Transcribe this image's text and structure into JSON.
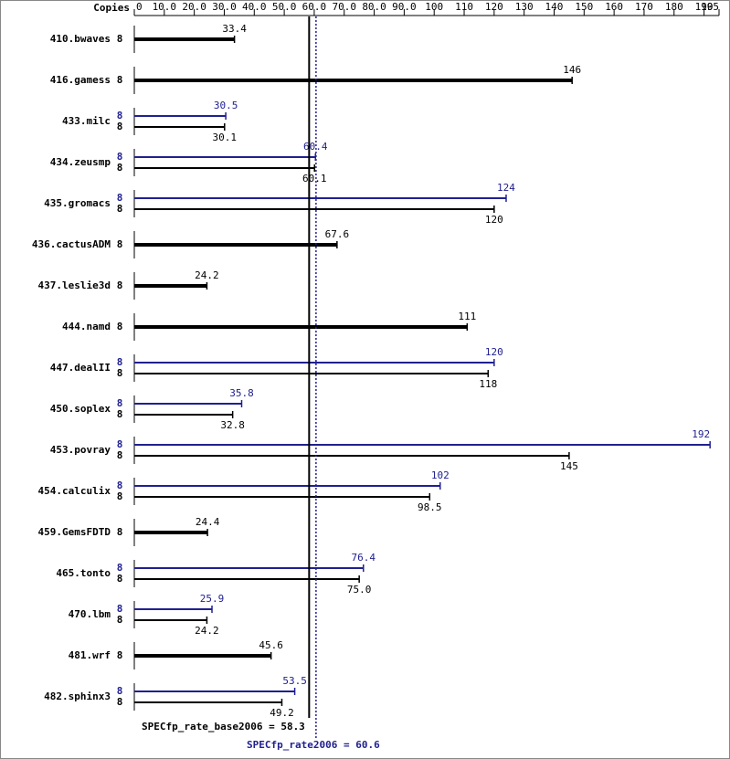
{
  "chart_data": {
    "type": "bar",
    "orientation": "horizontal",
    "copies_label": "Copies",
    "categories": [
      "410.bwaves",
      "416.gamess",
      "433.milc",
      "434.zeusmp",
      "435.gromacs",
      "436.cactusADM",
      "437.leslie3d",
      "444.namd",
      "447.dealII",
      "450.soplex",
      "453.povray",
      "454.calculix",
      "459.GemsFDTD",
      "465.tonto",
      "470.lbm",
      "481.wrf",
      "482.sphinx3"
    ],
    "series": [
      {
        "color": "#000000",
        "copies": [
          8,
          8,
          8,
          8,
          8,
          8,
          8,
          8,
          8,
          8,
          8,
          8,
          8,
          8,
          8,
          8,
          8
        ],
        "values": [
          33.4,
          146,
          30.1,
          60.1,
          120,
          67.6,
          24.2,
          111,
          118,
          32.8,
          145,
          98.5,
          24.4,
          75.0,
          24.2,
          45.6,
          49.2
        ],
        "value_labels": [
          "33.4",
          "146",
          "30.1",
          "60.1",
          "120",
          "67.6",
          "24.2",
          "111",
          "118",
          "32.8",
          "145",
          "98.5",
          "24.4",
          "75.0",
          "24.2",
          "45.6",
          "49.2"
        ]
      },
      {
        "color": "#202090",
        "copies": [
          null,
          null,
          8,
          8,
          8,
          null,
          null,
          null,
          8,
          8,
          8,
          8,
          null,
          8,
          8,
          null,
          8
        ],
        "values": [
          null,
          null,
          30.5,
          60.4,
          124,
          null,
          null,
          null,
          120,
          35.8,
          192,
          102,
          null,
          76.4,
          25.9,
          null,
          53.5
        ],
        "value_labels": [
          null,
          null,
          "30.5",
          "60.4",
          "124",
          null,
          null,
          null,
          "120",
          "35.8",
          "192",
          "102",
          null,
          "76.4",
          "25.9",
          null,
          "53.5"
        ]
      }
    ],
    "xlim": [
      0,
      195
    ],
    "xticks": [
      0,
      {
        "value": 10,
        "label": "10.0"
      },
      {
        "value": 20,
        "label": "20.0"
      },
      {
        "value": 30,
        "label": "30.0"
      },
      {
        "value": 40,
        "label": "40.0"
      },
      {
        "value": 50,
        "label": "50.0"
      },
      {
        "value": 60,
        "label": "60.0"
      },
      {
        "value": 70,
        "label": "70.0"
      },
      {
        "value": 80,
        "label": "80.0"
      },
      {
        "value": 90,
        "label": "90.0"
      },
      100,
      110,
      120,
      130,
      140,
      150,
      160,
      170,
      180,
      190,
      195
    ],
    "reference_lines": [
      {
        "value": 58.3,
        "label": "SPECfp_rate_base2006 = 58.3",
        "color": "#000000",
        "style": "solid"
      },
      {
        "value": 60.6,
        "label": "SPECfp_rate2006 = 60.6",
        "color": "#202090",
        "style": "dotted"
      }
    ]
  }
}
